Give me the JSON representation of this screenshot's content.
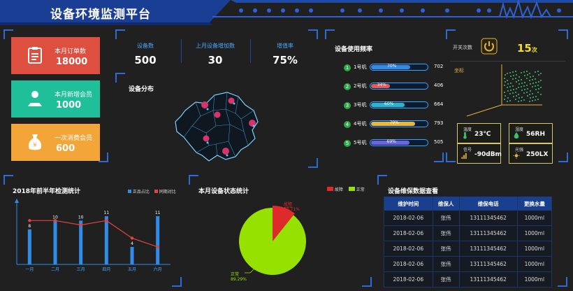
{
  "header": {
    "title": "设备环境监测平台"
  },
  "stats": [
    {
      "label": "本月订单数",
      "value": "18000",
      "color": "#de4f3f",
      "icon": "clipboard-icon"
    },
    {
      "label": "本月新增会员",
      "value": "1000",
      "color": "#1fbf9a",
      "icon": "member-group-icon"
    },
    {
      "label": "一次消费会员",
      "value": "600",
      "color": "#f3a637",
      "icon": "money-bag-icon"
    }
  ],
  "kpis": [
    {
      "label": "设备数",
      "value": "500"
    },
    {
      "label": "上月设备增加数",
      "value": "30"
    },
    {
      "label": "增值率",
      "value": "75%"
    }
  ],
  "distribution": {
    "title": "设备分布"
  },
  "usage": {
    "title": "设备使用频率",
    "items": [
      {
        "num": "1",
        "name": "1号机",
        "percent": "70%",
        "value": "702",
        "fraction": 0.7,
        "color": "#2f8ce8"
      },
      {
        "num": "2",
        "name": "2号机",
        "percent": "34%",
        "value": "406",
        "fraction": 0.34,
        "color": "#e25a5a"
      },
      {
        "num": "3",
        "name": "3号机",
        "percent": "60%",
        "value": "664",
        "fraction": 0.6,
        "color": "#23b9d6"
      },
      {
        "num": "4",
        "name": "4号机",
        "percent": "79%",
        "value": "793",
        "fraction": 0.79,
        "color": "#e9b640"
      },
      {
        "num": "5",
        "name": "5号机",
        "percent": "69%",
        "value": "505",
        "fraction": 0.69,
        "color": "#6a63e6"
      }
    ]
  },
  "switch": {
    "label": "开关次数",
    "value": "15",
    "unit": "次",
    "coord_label": "坐标"
  },
  "sensors": [
    {
      "label": "温度",
      "value": "23℃",
      "icon": "thermometer-icon"
    },
    {
      "label": "湿度",
      "value": "56RH",
      "icon": "humidity-icon"
    },
    {
      "label": "信号",
      "value": "-90dBm",
      "icon": "signal-icon"
    },
    {
      "label": "光强",
      "value": "250LX",
      "icon": "sun-icon"
    }
  ],
  "line_chart": {
    "title": "2018年前半年检测统计",
    "legend": [
      "正品占比",
      "同期对比"
    ]
  },
  "pie": {
    "title": "本月设备状态统计",
    "legend": [
      "故障",
      "正常"
    ],
    "labels": [
      {
        "name": "故障",
        "pct": "10.71%"
      },
      {
        "name": "正常",
        "pct": "89.29%"
      }
    ]
  },
  "maintenance": {
    "title": "设备维保数据查看",
    "headers": [
      "维护时间",
      "维保人",
      "维保电话",
      "更换水量"
    ],
    "rows": [
      [
        "2018-02-06",
        "张伟",
        "13111345462",
        "1000ml"
      ],
      [
        "2018-02-06",
        "张伟",
        "13111345462",
        "1000ml"
      ],
      [
        "2018-02-06",
        "张伟",
        "13111345462",
        "1000ml"
      ],
      [
        "2018-02-06",
        "张伟",
        "13111345462",
        "1000ml"
      ],
      [
        "2018-02-06",
        "张伟",
        "13111345462",
        "1000ml"
      ]
    ]
  },
  "chart_data": [
    {
      "type": "bar",
      "title": "2018年前半年检测统计",
      "categories": [
        "一月",
        "二月",
        "三月",
        "四月",
        "五月",
        "六月"
      ],
      "series": [
        {
          "name": "正品占比",
          "type": "bar",
          "values": [
            8,
            10,
            10,
            11,
            4,
            11
          ],
          "color": "#2f8ce8"
        },
        {
          "name": "同期对比",
          "type": "line",
          "values": [
            10,
            10,
            9,
            10,
            6,
            4
          ],
          "color": "#e2443c"
        }
      ],
      "ylim": [
        0,
        15
      ]
    },
    {
      "type": "pie",
      "title": "本月设备状态统计",
      "series": [
        {
          "name": "故障",
          "value": 10.71,
          "color": "#e02a2a"
        },
        {
          "name": "正常",
          "value": 89.29,
          "color": "#97e100"
        }
      ]
    }
  ]
}
